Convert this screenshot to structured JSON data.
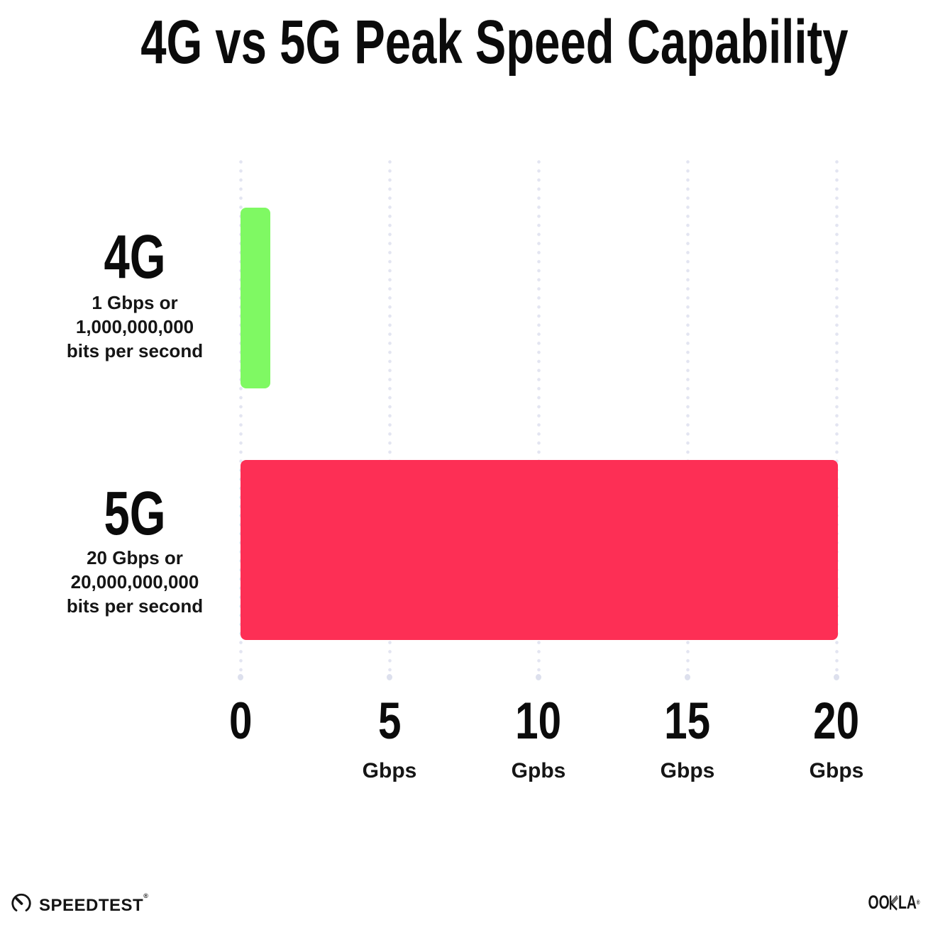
{
  "title": "4G vs 5G Peak Speed Capability",
  "chart_data": {
    "type": "bar",
    "orientation": "horizontal",
    "title": "4G vs 5G Peak Speed Capability",
    "categories": [
      "4G",
      "5G"
    ],
    "values": [
      1,
      20
    ],
    "value_unit": "Gbps",
    "xlim": [
      0,
      20
    ],
    "x_tick_values": [
      0,
      5,
      10,
      15,
      20
    ],
    "grid": "vertical dotted gridlines",
    "legend": "none",
    "bar_colors": [
      "#7FF963",
      "#FD2F55"
    ],
    "annotations": [
      "4G: 1 Gbps or 1,000,000,000 bits per second",
      "5G: 20 Gbps or 20,000,000,000 bits per second"
    ]
  },
  "rows": [
    {
      "label": "4G",
      "desc_line1": "1 Gbps or",
      "desc_line2": "1,000,000,000",
      "desc_line3": "bits per second"
    },
    {
      "label": "5G",
      "desc_line1": "20 Gbps or",
      "desc_line2": "20,000,000,000",
      "desc_line3": "bits per second"
    }
  ],
  "axis_ticks": [
    {
      "num": "0",
      "unit": ""
    },
    {
      "num": "5",
      "unit": "Gbps"
    },
    {
      "num": "10",
      "unit": "Gpbs"
    },
    {
      "num": "15",
      "unit": "Gbps"
    },
    {
      "num": "20",
      "unit": "Gbps"
    }
  ],
  "footer": {
    "speedtest_wordmark": "SPEEDTEST",
    "speedtest_reg": "®",
    "ookla_left": "OO",
    "ookla_right": "LA",
    "ookla_reg": "®"
  },
  "colors": {
    "bar_4g": "#7FF963",
    "bar_5g": "#FD2F55",
    "grid_dot": "#E3E5F1",
    "text": "#111111",
    "background": "#FFFFFF"
  }
}
